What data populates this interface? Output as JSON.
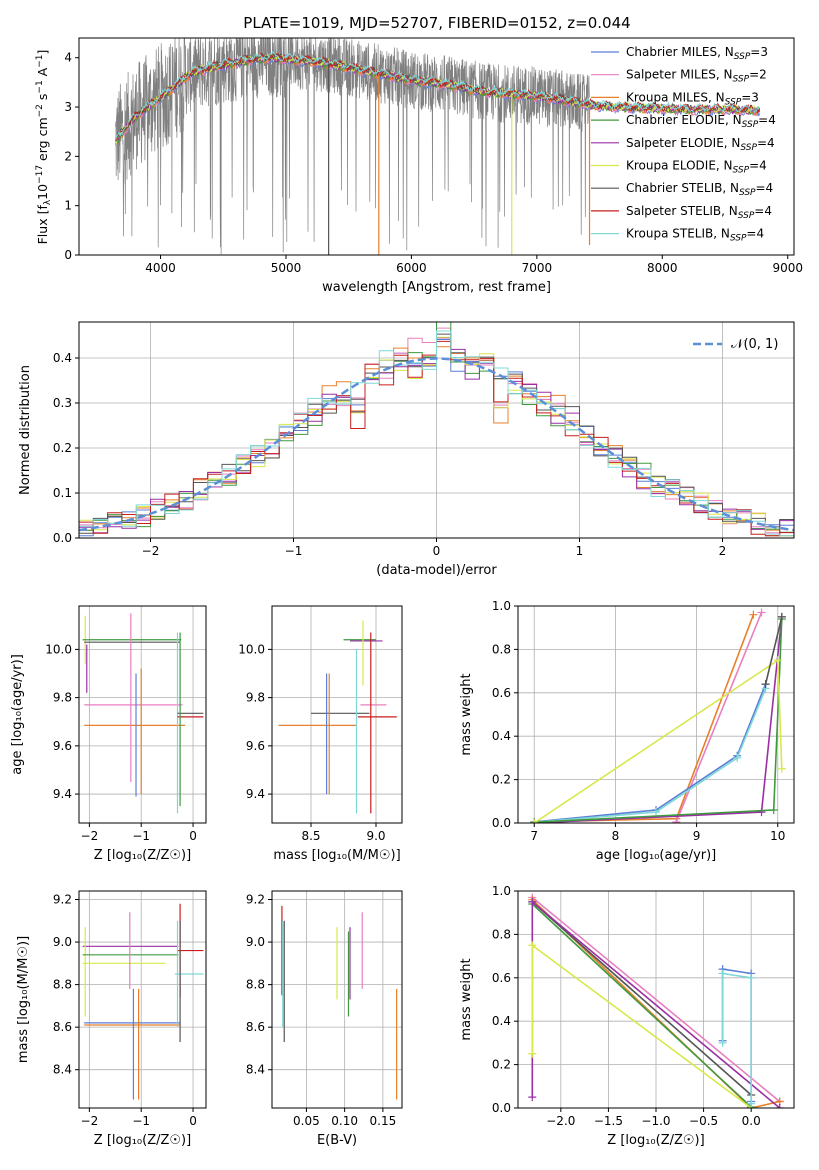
{
  "title": "PLATE=1019, MJD=52707, FIBERID=0152, z=0.044",
  "colors": {
    "Chabrier MILES": "#5b7fd6",
    "Salpeter MILES": "#e87fbf",
    "Kroupa MILES": "#e8802b",
    "Chabrier ELODIE": "#3f9a3f",
    "Salpeter ELODIE": "#9a2fa6",
    "Kroupa ELODIE": "#d8e84a",
    "Chabrier STELIB": "#555555",
    "Salpeter STELIB": "#c81e1e",
    "Kroupa STELIB": "#7fd8d8",
    "data": "#808080",
    "normal": "#5b8fd8",
    "grid": "#b0b0b0"
  },
  "legend": [
    {
      "model": "Chabrier MILES",
      "text": "Chabrier MILES, N",
      "sub": "SSP",
      "n": "=3"
    },
    {
      "model": "Salpeter MILES",
      "text": "Salpeter MILES, N",
      "sub": "SSP",
      "n": "=2"
    },
    {
      "model": "Kroupa MILES",
      "text": "Kroupa MILES, N",
      "sub": "SSP",
      "n": "=3"
    },
    {
      "model": "Chabrier ELODIE",
      "text": "Chabrier ELODIE, N",
      "sub": "SSP",
      "n": "=4"
    },
    {
      "model": "Salpeter ELODIE",
      "text": "Salpeter ELODIE, N",
      "sub": "SSP",
      "n": "=4"
    },
    {
      "model": "Kroupa ELODIE",
      "text": "Kroupa ELODIE, N",
      "sub": "SSP",
      "n": "=4"
    },
    {
      "model": "Chabrier STELIB",
      "text": "Chabrier STELIB, N",
      "sub": "SSP",
      "n": "=4"
    },
    {
      "model": "Salpeter STELIB",
      "text": "Salpeter STELIB, N",
      "sub": "SSP",
      "n": "=4"
    },
    {
      "model": "Kroupa STELIB",
      "text": "Kroupa STELIB, N",
      "sub": "SSP",
      "n": "=4"
    }
  ],
  "chart_data": [
    {
      "id": "spectrum",
      "type": "line",
      "title": "PLATE=1019, MJD=52707, FIBERID=0152, z=0.044",
      "xlabel": "wavelength [Angstrom, rest frame]",
      "ylabel_parts": [
        "Flux [f",
        "λ",
        "10",
        "−17",
        " erg cm",
        "−2",
        " s",
        "−1",
        " A",
        "−1",
        "]"
      ],
      "xlim": [
        3350,
        9050
      ],
      "ylim": [
        0,
        4.4
      ],
      "xticks": [
        4000,
        5000,
        6000,
        7000,
        8000,
        9000
      ],
      "yticks": [
        0,
        1,
        2,
        3,
        4
      ],
      "continuum": [
        [
          3640,
          2.3
        ],
        [
          3700,
          2.5
        ],
        [
          3800,
          2.8
        ],
        [
          3950,
          3.1
        ],
        [
          4050,
          3.3
        ],
        [
          4250,
          3.7
        ],
        [
          4500,
          3.85
        ],
        [
          4700,
          3.95
        ],
        [
          4900,
          4.0
        ],
        [
          5100,
          3.95
        ],
        [
          5300,
          3.9
        ],
        [
          5500,
          3.8
        ],
        [
          5700,
          3.7
        ],
        [
          6000,
          3.55
        ],
        [
          6300,
          3.45
        ],
        [
          6600,
          3.3
        ],
        [
          6900,
          3.25
        ],
        [
          7200,
          3.15
        ],
        [
          7400,
          3.05
        ],
        [
          7600,
          3.0
        ],
        [
          7900,
          2.98
        ],
        [
          8200,
          2.95
        ],
        [
          8500,
          2.95
        ],
        [
          8780,
          2.93
        ]
      ],
      "model_end": 8780,
      "data_end": 7420,
      "dips": [
        {
          "x": 5340,
          "y": 0,
          "model": "Chabrier STELIB"
        },
        {
          "x": 5740,
          "y": 0,
          "model": "Kroupa MILES"
        },
        {
          "x": 6800,
          "y": 0,
          "model": "Kroupa ELODIE"
        },
        {
          "x": 7420,
          "y": 0.2,
          "model": "Kroupa MILES"
        }
      ]
    },
    {
      "id": "residuals",
      "type": "step-histogram",
      "xlabel": "(data-model)/error",
      "ylabel": "Normed distribution",
      "xlim": [
        -2.5,
        2.5
      ],
      "ylim": [
        0,
        0.48
      ],
      "xticks": [
        -2,
        -1,
        0,
        1,
        2
      ],
      "yticks": [
        0.0,
        0.1,
        0.2,
        0.3,
        0.4
      ],
      "bin_width": 0.1,
      "reference_label": "𝒩(0, 1)"
    },
    {
      "id": "age-vs-Z",
      "type": "errorbar",
      "xlabel": "Z [log₁₀(Z/Z☉)]",
      "ylabel": "age  [log₁₀(age/yr)]",
      "xlim": [
        -2.2,
        0.25
      ],
      "ylim": [
        9.28,
        10.18
      ],
      "xticks": [
        -2,
        -1,
        0
      ],
      "yticks": [
        9.4,
        9.6,
        9.8,
        10.0
      ],
      "points": [
        {
          "model": "Kroupa ELODIE",
          "x": -2.08,
          "y": 10.04,
          "xerr": 0,
          "yerr": [
            0.1,
            0.1
          ]
        },
        {
          "model": "Salpeter ELODIE",
          "x": -2.05,
          "y": 9.92,
          "xerr": 0,
          "yerr": [
            0.1,
            0.1
          ]
        },
        {
          "model": "Chabrier ELODIE",
          "x": -2.08,
          "y": 10.04,
          "xerr": [
            0.05,
            1.85
          ],
          "yerr": 0
        },
        {
          "model": "Chabrier STELIB",
          "x": -2.0,
          "y": 10.03,
          "xerr": [
            0.1,
            1.75
          ],
          "yerr": 0
        },
        {
          "model": "Kroupa MILES",
          "x": -2.0,
          "y": 9.685,
          "xerr": [
            0.1,
            1.85
          ],
          "yerr": 0
        },
        {
          "model": "Salpeter MILES",
          "x": -1.2,
          "y": 9.77,
          "xerr": [
            0.9,
            1.0
          ],
          "yerr": [
            0.32,
            0.38
          ]
        },
        {
          "model": "Chabrier MILES",
          "x": -1.1,
          "y": 9.7,
          "xerr": 0,
          "yerr": [
            0.31,
            0.2
          ]
        },
        {
          "model": "Kroupa MILES",
          "x": -1.0,
          "y": 9.7,
          "xerr": 0,
          "yerr": [
            0.3,
            0.22
          ]
        },
        {
          "model": "Kroupa STELIB",
          "x": -0.3,
          "y": 9.8,
          "xerr": 0,
          "yerr": [
            0.48,
            0.27
          ]
        },
        {
          "model": "Salpeter STELIB",
          "x": -0.25,
          "y": 9.72,
          "xerr": [
            0.05,
            0.45
          ],
          "yerr": 0
        },
        {
          "model": "Chabrier STELIB",
          "x": -0.25,
          "y": 9.735,
          "xerr": [
            0.05,
            0.45
          ],
          "yerr": 0
        },
        {
          "model": "Chabrier ELODIE",
          "x": -0.25,
          "y": 9.9,
          "xerr": 0,
          "yerr": [
            0.55,
            0.17
          ]
        }
      ]
    },
    {
      "id": "age-vs-mass",
      "type": "errorbar",
      "xlabel": "mass [log₁₀(M/M☉)]",
      "ylabel": "",
      "xlim": [
        8.2,
        9.2
      ],
      "ylim": [
        9.28,
        10.18
      ],
      "xticks": [
        8.5,
        9.0
      ],
      "yticks": [
        9.4,
        9.6,
        9.8,
        10.0
      ],
      "points": [
        {
          "model": "Kroupa MILES",
          "x": 8.55,
          "y": 9.685,
          "xerr": [
            0.3,
            0.3
          ],
          "yerr": 0
        },
        {
          "model": "Chabrier STELIB",
          "x": 8.75,
          "y": 9.735,
          "xerr": [
            0.25,
            0.2
          ],
          "yerr": 0
        },
        {
          "model": "Chabrier MILES",
          "x": 8.62,
          "y": 9.73,
          "xerr": 0,
          "yerr": [
            0.33,
            0.17
          ]
        },
        {
          "model": "Kroupa MILES",
          "x": 8.64,
          "y": 9.73,
          "xerr": 0,
          "yerr": [
            0.33,
            0.17
          ]
        },
        {
          "model": "Chabrier ELODIE",
          "x": 8.9,
          "y": 10.04,
          "xerr": [
            0.15,
            0.1
          ],
          "yerr": 0
        },
        {
          "model": "Salpeter ELODIE",
          "x": 8.95,
          "y": 10.035,
          "xerr": [
            0.15,
            0.1
          ],
          "yerr": 0
        },
        {
          "model": "Kroupa ELODIE",
          "x": 8.9,
          "y": 10.0,
          "xerr": 0,
          "yerr": [
            0.15,
            0.12
          ]
        },
        {
          "model": "Kroupa STELIB",
          "x": 8.85,
          "y": 9.8,
          "xerr": 0,
          "yerr": [
            0.48,
            0.2
          ]
        },
        {
          "model": "Salpeter MILES",
          "x": 8.98,
          "y": 9.77,
          "xerr": [
            0.1,
            0.1
          ],
          "yerr": 0
        },
        {
          "model": "Salpeter STELIB",
          "x": 8.96,
          "y": 9.72,
          "xerr": [
            0.1,
            0.2
          ],
          "yerr": [
            0.4,
            0.35
          ]
        }
      ]
    },
    {
      "id": "mass-weight-vs-age",
      "type": "line",
      "xlabel": "age  [log₁₀(age/yr)]",
      "ylabel": "mass weight",
      "xlim": [
        6.8,
        10.2
      ],
      "ylim": [
        0,
        1.0
      ],
      "xticks": [
        7,
        8,
        9,
        10
      ],
      "yticks": [
        0.0,
        0.2,
        0.4,
        0.6,
        0.8,
        1.0
      ],
      "series": [
        {
          "model": "Kroupa MILES",
          "x": [
            7.0,
            8.75,
            9.7
          ],
          "y": [
            0.005,
            0.02,
            0.96
          ]
        },
        {
          "model": "Salpeter MILES",
          "x": [
            8.75,
            9.8
          ],
          "y": [
            0.005,
            0.97
          ]
        },
        {
          "model": "Chabrier MILES",
          "x": [
            7.0,
            8.5,
            9.5,
            9.85
          ],
          "y": [
            0.005,
            0.06,
            0.31,
            0.64
          ]
        },
        {
          "model": "Kroupa STELIB",
          "x": [
            7.0,
            8.5,
            9.5,
            9.85
          ],
          "y": [
            0.003,
            0.05,
            0.3,
            0.62
          ]
        },
        {
          "model": "Salpeter ELODIE",
          "x": [
            7.0,
            9.8,
            10.05
          ],
          "y": [
            0.0,
            0.05,
            0.95
          ]
        },
        {
          "model": "Chabrier ELODIE",
          "x": [
            7.0,
            9.95,
            10.05
          ],
          "y": [
            0.003,
            0.06,
            0.94
          ]
        },
        {
          "model": "Kroupa ELODIE",
          "x": [
            7.0,
            10.0,
            10.05
          ],
          "y": [
            0.0,
            0.75,
            0.25
          ]
        },
        {
          "model": "Chabrier STELIB",
          "x": [
            9.85,
            10.05
          ],
          "y": [
            0.64,
            0.95
          ]
        }
      ]
    },
    {
      "id": "mass-vs-Z",
      "type": "errorbar",
      "xlabel": "Z [log₁₀(Z/Z☉)]",
      "ylabel": "mass [log₁₀(M/M☉)]",
      "xlim": [
        -2.2,
        0.25
      ],
      "ylim": [
        8.22,
        9.24
      ],
      "xticks": [
        -2,
        -1,
        0
      ],
      "yticks": [
        8.4,
        8.6,
        8.8,
        9.0,
        9.2
      ],
      "points": [
        {
          "model": "Salpeter ELODIE",
          "x": -2.08,
          "y": 8.98,
          "xerr": [
            0.05,
            1.8
          ],
          "yerr": 0
        },
        {
          "model": "Kroupa ELODIE",
          "x": -2.08,
          "y": 8.9,
          "xerr": [
            0.05,
            1.55
          ],
          "yerr": [
            0.25,
            0.17
          ]
        },
        {
          "model": "Chabrier ELODIE",
          "x": -2.08,
          "y": 8.94,
          "xerr": [
            0.05,
            1.8
          ],
          "yerr": 0
        },
        {
          "model": "Chabrier MILES",
          "x": -2.05,
          "y": 8.62,
          "xerr": [
            0.05,
            1.8
          ],
          "yerr": 0
        },
        {
          "model": "Kroupa MILES",
          "x": -2.05,
          "y": 8.61,
          "xerr": [
            0.05,
            1.8
          ],
          "yerr": 0
        },
        {
          "model": "Salpeter MILES",
          "x": -1.22,
          "y": 8.96,
          "xerr": 0,
          "yerr": [
            0.18,
            0.18
          ]
        },
        {
          "model": "Chabrier MILES",
          "x": -1.15,
          "y": 8.52,
          "xerr": 0,
          "yerr": [
            0.26,
            0.26
          ]
        },
        {
          "model": "Kroupa MILES",
          "x": -1.05,
          "y": 8.52,
          "xerr": 0,
          "yerr": [
            0.26,
            0.26
          ]
        },
        {
          "model": "Salpeter STELIB",
          "x": -0.25,
          "y": 8.96,
          "xerr": [
            0.05,
            0.45
          ],
          "yerr": [
            0.22,
            0.22
          ]
        },
        {
          "model": "Kroupa STELIB",
          "x": -0.3,
          "y": 8.85,
          "xerr": [
            0.05,
            0.5
          ],
          "yerr": [
            0.25,
            0.25
          ]
        },
        {
          "model": "Chabrier STELIB",
          "x": -0.25,
          "y": 8.85,
          "xerr": 0,
          "yerr": [
            0.32,
            0.25
          ]
        }
      ]
    },
    {
      "id": "mass-vs-EBV",
      "type": "errorbar",
      "xlabel": "E(B-V)",
      "ylabel": "",
      "xlim": [
        0.005,
        0.175
      ],
      "ylim": [
        8.22,
        9.24
      ],
      "xticks": [
        0.05,
        0.1,
        0.15
      ],
      "xtick_labels": [
        "0.05",
        "0.10",
        "0.15"
      ],
      "yticks": [
        8.4,
        8.6,
        8.8,
        9.0,
        9.2
      ],
      "points": [
        {
          "model": "Salpeter STELIB",
          "x": 0.018,
          "y": 8.95,
          "xerr": 0,
          "yerr": [
            0.2,
            0.22
          ]
        },
        {
          "model": "Kroupa STELIB",
          "x": 0.019,
          "y": 8.85,
          "xerr": 0,
          "yerr": [
            0.25,
            0.25
          ]
        },
        {
          "model": "Chabrier STELIB",
          "x": 0.021,
          "y": 8.85,
          "xerr": 0,
          "yerr": [
            0.32,
            0.25
          ]
        },
        {
          "model": "Kroupa ELODIE",
          "x": 0.09,
          "y": 8.9,
          "xerr": 0,
          "yerr": [
            0.17,
            0.17
          ]
        },
        {
          "model": "Chabrier ELODIE",
          "x": 0.105,
          "y": 8.85,
          "xerr": 0,
          "yerr": [
            0.2,
            0.2
          ]
        },
        {
          "model": "Salpeter ELODIE",
          "x": 0.107,
          "y": 8.9,
          "xerr": 0,
          "yerr": [
            0.17,
            0.17
          ]
        },
        {
          "model": "Salpeter MILES",
          "x": 0.123,
          "y": 8.96,
          "xerr": 0,
          "yerr": [
            0.18,
            0.18
          ]
        },
        {
          "model": "Kroupa MILES",
          "x": 0.168,
          "y": 8.52,
          "xerr": 0,
          "yerr": [
            0.26,
            0.26
          ]
        }
      ]
    },
    {
      "id": "mass-weight-vs-Z",
      "type": "line",
      "xlabel": "Z [log₁₀(Z/Z☉)]",
      "ylabel": "mass weight",
      "xlim": [
        -2.45,
        0.45
      ],
      "ylim": [
        0,
        1.0
      ],
      "xticks": [
        -2.0,
        -1.5,
        -1.0,
        -0.5,
        0.0
      ],
      "xtick_labels": [
        "−2.0",
        "−1.5",
        "−1.0",
        "−0.5",
        "0.0"
      ],
      "yticks": [
        0.0,
        0.2,
        0.4,
        0.6,
        0.8,
        1.0
      ],
      "series": [
        {
          "model": "Salpeter MILES",
          "x": [
            -2.3,
            0.3
          ],
          "y": [
            0.97,
            0.03
          ]
        },
        {
          "model": "Kroupa MILES",
          "x": [
            -2.3,
            0.0,
            0.3
          ],
          "y": [
            0.96,
            0.0,
            0.03
          ]
        },
        {
          "model": "Chabrier ELODIE",
          "x": [
            -2.3,
            0.0
          ],
          "y": [
            0.94,
            0.005
          ]
        },
        {
          "model": "Chabrier STELIB",
          "x": [
            -2.3,
            0.0
          ],
          "y": [
            0.95,
            0.06
          ]
        },
        {
          "model": "Salpeter ELODIE",
          "x": [
            -2.3,
            -2.3,
            0.3
          ],
          "y": [
            0.05,
            0.95,
            0.0
          ]
        },
        {
          "model": "Kroupa ELODIE",
          "x": [
            -2.3,
            -2.3,
            -0.0
          ],
          "y": [
            0.25,
            0.75,
            0.0
          ]
        },
        {
          "model": "Chabrier MILES",
          "x": [
            -0.3,
            -0.3,
            0.0,
            0.0
          ],
          "y": [
            0.31,
            0.64,
            0.62,
            0.03
          ]
        },
        {
          "model": "Kroupa STELIB",
          "x": [
            -0.3,
            -0.3,
            0.0,
            0.0
          ],
          "y": [
            0.3,
            0.62,
            0.6,
            0.02
          ]
        }
      ]
    }
  ]
}
